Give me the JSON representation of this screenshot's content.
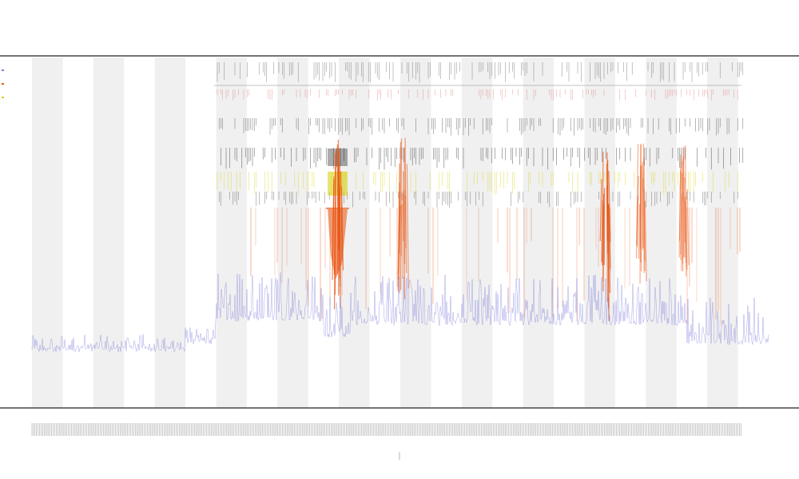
{
  "chart_data": {
    "type": "line",
    "title": "",
    "subtitle_1": "",
    "subtitle_2": "",
    "xlabel": "",
    "ylabel": "",
    "band_count": 24,
    "series": [
      {
        "name": "",
        "color": "#7b7bd6",
        "role": "coverage"
      },
      {
        "name": "",
        "color": "#e8650f",
        "role": "intensity"
      },
      {
        "name": "",
        "color": "#d8d400",
        "role": "band"
      }
    ],
    "hot_regions": [
      {
        "x": 0.415,
        "strength": 1.0
      },
      {
        "x": 0.504,
        "strength": 0.7
      },
      {
        "x": 0.778,
        "strength": 0.95
      },
      {
        "x": 0.828,
        "strength": 0.55
      },
      {
        "x": 0.885,
        "strength": 0.5
      }
    ],
    "legend_placement": "top-left",
    "grid": false
  },
  "colors": {
    "band": "#f0f0f0",
    "axis": "#222222",
    "coverage": "#6a6ad8",
    "hot": "#e8520f",
    "yellow": "#d4cf00"
  }
}
